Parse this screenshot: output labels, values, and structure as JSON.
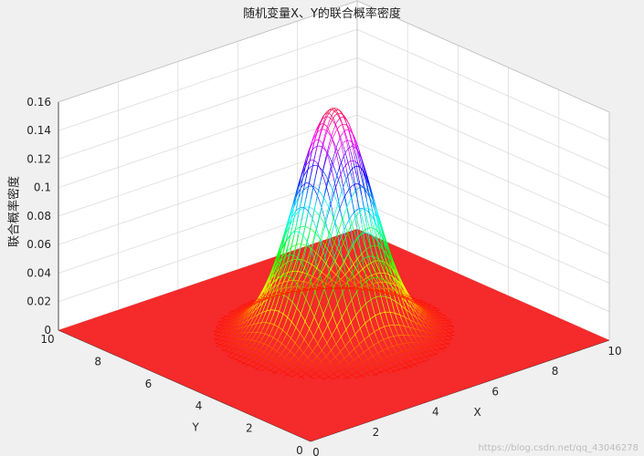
{
  "figure": {
    "title": "随机变量X、Y的联合概率密度",
    "watermark": "https://blog.csdn.net/qq_43046278"
  },
  "colors": {
    "background": "#f0f0f0",
    "axes_panel": "#ffffff",
    "grid": "#dcdcdc",
    "tick_text": "#262626",
    "colormap": "hsv"
  },
  "chart_data": {
    "type": "mesh3d",
    "title": "随机变量X、Y的联合概率密度",
    "xlabel": "X",
    "ylabel": "Y",
    "zlabel": "联合概率密度",
    "function": "bivariate normal density, mean (5,5), sd 1, correlation 0",
    "mean": [
      5,
      5
    ],
    "sigma": [
      1,
      1
    ],
    "xlim": [
      0,
      10
    ],
    "ylim": [
      0,
      10
    ],
    "zlim": [
      0,
      0.16
    ],
    "peak_value": 0.159,
    "xticks": [
      "0",
      "2",
      "4",
      "6",
      "8",
      "10"
    ],
    "yticks": [
      "0",
      "2",
      "4",
      "6",
      "8",
      "10"
    ],
    "zticks": [
      "0",
      "0.02",
      "0.04",
      "0.06",
      "0.08",
      "0.1",
      "0.12",
      "0.14",
      "0.16"
    ],
    "grid": true,
    "box": "back panels only",
    "view": "azimuth -37.5, elevation 30"
  }
}
